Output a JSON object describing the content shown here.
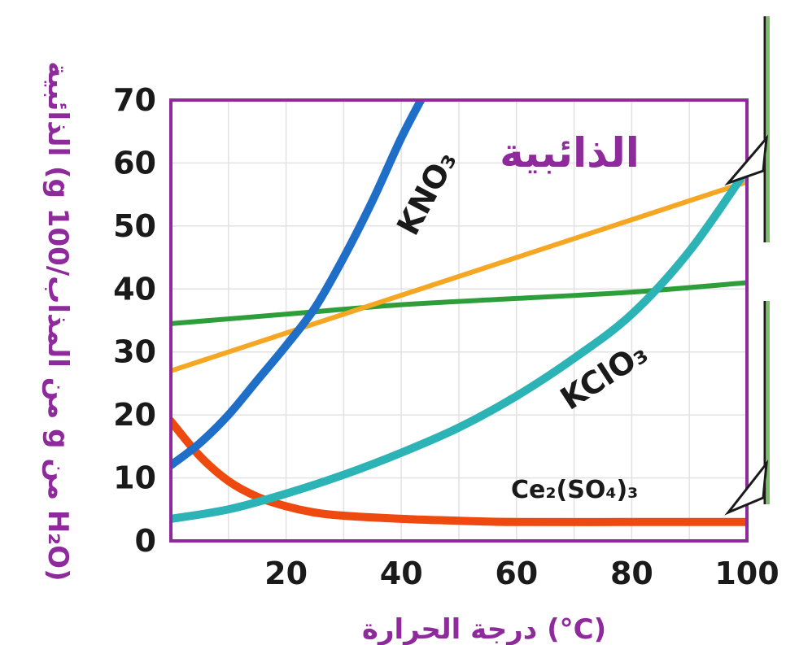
{
  "chart_data": {
    "type": "line",
    "title": "الذائبية",
    "xlabel": "درجة الحرارة (°C)",
    "ylabel": "الذائبية (g من المذاب/100 g من H₂O)",
    "xlim": [
      0,
      100
    ],
    "ylim": [
      0,
      70
    ],
    "x_ticks": [
      "20",
      "40",
      "60",
      "80",
      "100"
    ],
    "y_ticks": [
      "0",
      "10",
      "20",
      "30",
      "40",
      "50",
      "60",
      "70"
    ],
    "grid": true,
    "colors": {
      "frame": "#8e2a9c",
      "grid": "#e2e2e2",
      "kno3": "#1f6fc9",
      "kclo3": "#2bb3b6",
      "ce2so43": "#ee4a10",
      "orange": "#f5a623",
      "green": "#2e9e3a"
    },
    "series": [
      {
        "key": "kno3",
        "name": "KNO₃",
        "x": [
          0,
          5,
          10,
          15,
          20,
          25,
          30,
          35,
          40,
          44
        ],
        "y": [
          12,
          15.5,
          20,
          25.5,
          31,
          37,
          45,
          54,
          64,
          71
        ]
      },
      {
        "key": "kclo3",
        "name": "KClO₃",
        "x": [
          0,
          10,
          20,
          30,
          40,
          50,
          60,
          70,
          80,
          90,
          100
        ],
        "y": [
          3.5,
          5,
          7.5,
          10.5,
          14,
          18,
          23,
          29,
          36,
          46,
          59
        ]
      },
      {
        "key": "ce2so43",
        "name": "Ce₂(SO₄)₃",
        "x": [
          0,
          5,
          10,
          15,
          20,
          25,
          30,
          40,
          50,
          60,
          80,
          100
        ],
        "y": [
          19,
          13.5,
          9.5,
          7,
          5.5,
          4.5,
          4,
          3.5,
          3.2,
          3,
          3,
          3
        ]
      },
      {
        "key": "orange",
        "x": [
          0,
          20,
          40,
          60,
          80,
          100
        ],
        "y": [
          27,
          33,
          39,
          45,
          51,
          57
        ]
      },
      {
        "key": "green",
        "x": [
          0,
          20,
          40,
          60,
          80,
          100
        ],
        "y": [
          34.5,
          36,
          37.5,
          38.5,
          39.5,
          41
        ]
      }
    ]
  }
}
